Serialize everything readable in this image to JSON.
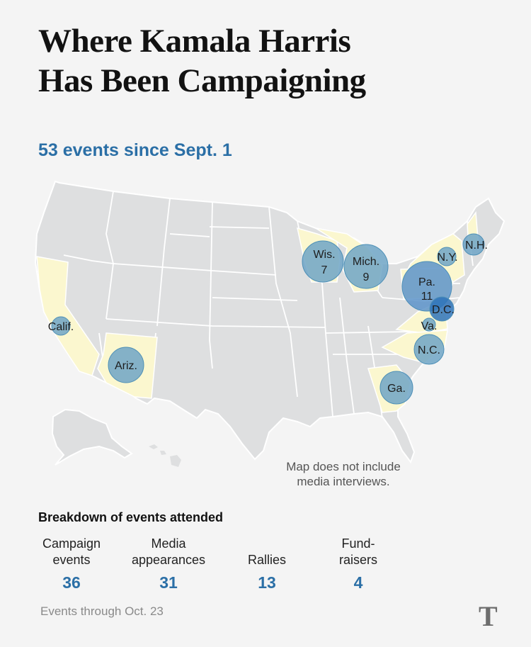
{
  "header": {
    "title_line1": "Where Kamala Harris",
    "title_line2": "Has Been Campaigning",
    "subtitle": "53 events since Sept. 1"
  },
  "map": {
    "colors": {
      "land": "#dedfe0",
      "border": "#ffffff",
      "visited_state": "#fbf7cf",
      "bubble": "#5f9fc2",
      "bubble_dark": "#2e73b8"
    },
    "labels": [
      {
        "name": "Calif.",
        "count": ""
      },
      {
        "name": "Ariz.",
        "count": ""
      },
      {
        "name": "Wis.",
        "count": "7"
      },
      {
        "name": "Mich.",
        "count": "9"
      },
      {
        "name": "Pa.",
        "count": "11"
      },
      {
        "name": "N.Y.",
        "count": ""
      },
      {
        "name": "N.H.",
        "count": ""
      },
      {
        "name": "D.C.",
        "count": ""
      },
      {
        "name": "Va.",
        "count": ""
      },
      {
        "name": "N.C.",
        "count": ""
      },
      {
        "name": "Ga.",
        "count": ""
      }
    ],
    "note_line1": "Map does not include",
    "note_line2": "media interviews."
  },
  "breakdown": {
    "heading": "Breakdown of events attended",
    "items": [
      {
        "label_line1": "Campaign",
        "label_line2": "events",
        "value": "36"
      },
      {
        "label_line1": "Media",
        "label_line2": "appearances",
        "value": "31"
      },
      {
        "label_line1": "",
        "label_line2": "Rallies",
        "value": "13"
      },
      {
        "label_line1": "Fund-",
        "label_line2": "raisers",
        "value": "4"
      }
    ]
  },
  "footnote": "Events through Oct. 23",
  "logo_icon": "nyt-t-logo-icon",
  "logo_text": "T"
}
